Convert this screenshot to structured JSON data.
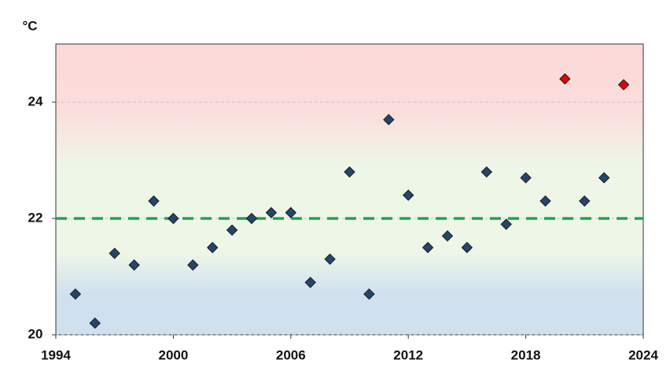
{
  "chart_data": {
    "type": "scatter",
    "y_label": "°C",
    "xlim": [
      1994,
      2024
    ],
    "xticks": [
      1994,
      2000,
      2006,
      2012,
      2018,
      2024
    ],
    "ylim": [
      20,
      25
    ],
    "yticks": [
      20,
      22,
      24
    ],
    "grid": true,
    "reference_line": {
      "value": 22,
      "color": "#22a24f"
    },
    "series": [
      {
        "color": "#24466a",
        "x": [
          1995,
          1996,
          1997,
          1998,
          1999,
          2000,
          2001,
          2002,
          2003,
          2004,
          2005,
          2006,
          2007,
          2008,
          2009,
          2010,
          2011,
          2012,
          2013,
          2014,
          2015,
          2016,
          2017,
          2018,
          2019,
          2021,
          2022
        ],
        "values": [
          20.7,
          20.2,
          21.4,
          21.2,
          22.3,
          22.0,
          21.2,
          21.5,
          21.8,
          22.0,
          22.1,
          22.1,
          20.9,
          21.3,
          22.8,
          20.7,
          23.7,
          22.4,
          21.5,
          21.7,
          21.5,
          22.8,
          21.9,
          22.7,
          22.3,
          22.3,
          22.7
        ]
      },
      {
        "color": "#e60000",
        "x": [
          2020,
          2023
        ],
        "values": [
          24.4,
          24.3
        ]
      }
    ]
  }
}
